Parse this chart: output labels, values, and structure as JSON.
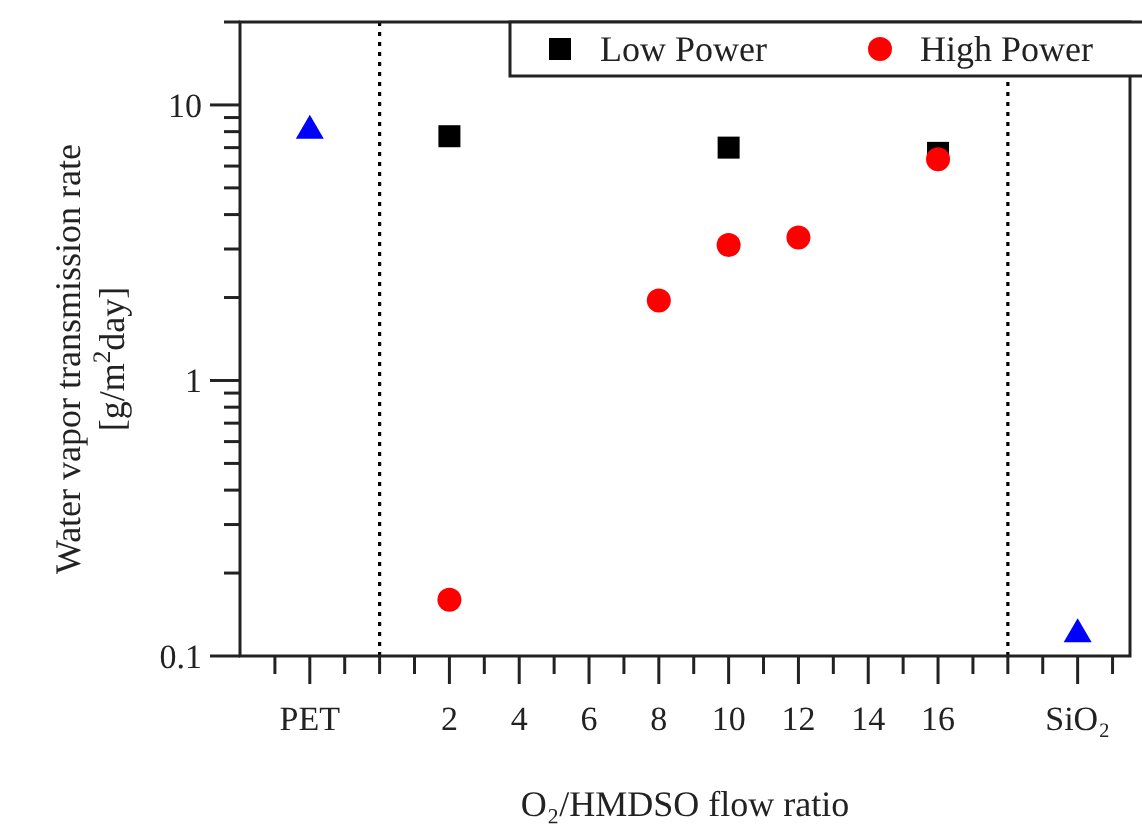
{
  "chart_data": {
    "type": "scatter",
    "xlabel": "O₂/HMDSO flow ratio",
    "ylabel": "Water vapor transmission rate [g/m$^{2}$day]",
    "log": "y",
    "xlim": [
      -4,
      21.5
    ],
    "ylim": [
      0.1,
      20
    ],
    "xticks": [
      {
        "value": -3,
        "label": null
      },
      {
        "value": -2,
        "label": "PET"
      },
      {
        "value": -1,
        "label": null
      },
      {
        "value": 0,
        "label": null
      },
      {
        "value": 1,
        "label": null
      },
      2,
      {
        "value": 3,
        "label": null
      },
      4,
      {
        "value": 5,
        "label": null
      },
      6,
      {
        "value": 7,
        "label": null
      },
      8,
      {
        "value": 9,
        "label": null
      },
      10,
      {
        "value": 11,
        "label": null
      },
      12,
      {
        "value": 13,
        "label": null
      },
      14,
      {
        "value": 15,
        "label": null
      },
      16,
      {
        "value": 17,
        "label": null
      },
      {
        "value": 18,
        "label": null
      },
      {
        "value": 19,
        "label": null
      },
      {
        "value": 20,
        "label": "SiO₂"
      },
      {
        "value": 21,
        "label": null
      }
    ],
    "yticks": [
      0.1,
      {
        "value": 0.2,
        "label": null
      },
      {
        "value": 0.3,
        "label": null
      },
      {
        "value": 0.4,
        "label": null
      },
      {
        "value": 0.5,
        "label": null
      },
      {
        "value": 0.6,
        "label": null
      },
      {
        "value": 0.7,
        "label": null
      },
      {
        "value": 0.8,
        "label": null
      },
      {
        "value": 0.9,
        "label": null
      },
      1,
      {
        "value": 2,
        "label": null
      },
      {
        "value": 3,
        "label": null
      },
      {
        "value": 4,
        "label": null
      },
      {
        "value": 5,
        "label": null
      },
      {
        "value": 6,
        "label": null
      },
      {
        "value": 7,
        "label": null
      },
      {
        "value": 8,
        "label": null
      },
      {
        "value": 9,
        "label": null
      },
      10,
      {
        "value": 20,
        "label": null
      }
    ],
    "grid": false,
    "legend": "top right",
    "ref_lines": [
      {
        "axis": "x",
        "value": 0,
        "line_style": "dotted",
        "color": "#000000"
      },
      {
        "axis": "x",
        "value": 18,
        "line_style": "dotted",
        "color": "#000000"
      }
    ],
    "series": [
      {
        "name": "Low Power",
        "color": "#000000",
        "marker": "square",
        "x": [
          2,
          10,
          16
        ],
        "values": [
          7.7,
          7.0,
          6.7
        ]
      },
      {
        "name": "High Power",
        "color": "#ff0000",
        "marker": "circle",
        "x": [
          2,
          8,
          10,
          12,
          16
        ],
        "values": [
          0.16,
          1.95,
          3.1,
          3.3,
          6.35
        ]
      },
      {
        "color": "#0000ff",
        "marker": "triangle",
        "x": [
          -2,
          20
        ],
        "values": [
          8.2,
          0.122
        ]
      }
    ]
  }
}
